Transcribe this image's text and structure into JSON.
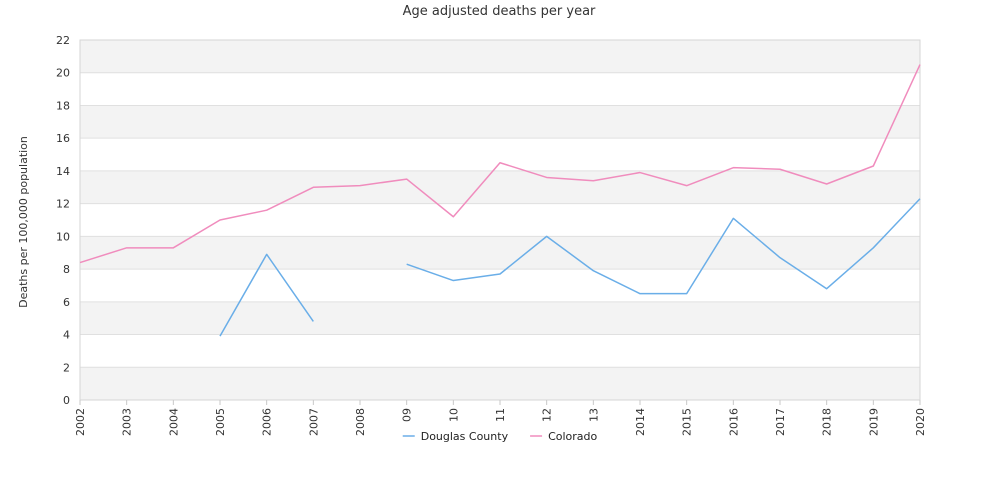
{
  "chart_data": {
    "type": "line",
    "title": "Age adjusted deaths per year",
    "ylabel": "Deaths per 100,000 population",
    "xlabel": "",
    "categories": [
      "2002",
      "2003",
      "2004",
      "2005",
      "2006",
      "2007",
      "2008",
      "09",
      "10",
      "11",
      "12",
      "13",
      "2014",
      "2015",
      "2016",
      "2017",
      "2018",
      "2019",
      "2020"
    ],
    "ylim": [
      0,
      22
    ],
    "yticks": [
      0,
      2,
      4,
      6,
      8,
      10,
      12,
      14,
      16,
      18,
      20,
      22
    ],
    "grid": true,
    "legend_position": "bottom-center",
    "series": [
      {
        "name": "Douglas County",
        "color": "#6aaee8",
        "values": [
          null,
          null,
          null,
          3.9,
          8.9,
          4.8,
          null,
          8.3,
          7.3,
          7.7,
          10.0,
          7.9,
          6.5,
          6.5,
          11.1,
          8.7,
          6.8,
          9.3,
          12.3
        ]
      },
      {
        "name": "Colorado",
        "color": "#f08cbd",
        "values": [
          8.4,
          9.3,
          9.3,
          11.0,
          11.6,
          13.0,
          13.1,
          13.5,
          11.2,
          14.5,
          13.6,
          13.4,
          13.9,
          13.1,
          14.2,
          14.1,
          13.2,
          14.3,
          20.5
        ]
      }
    ]
  }
}
